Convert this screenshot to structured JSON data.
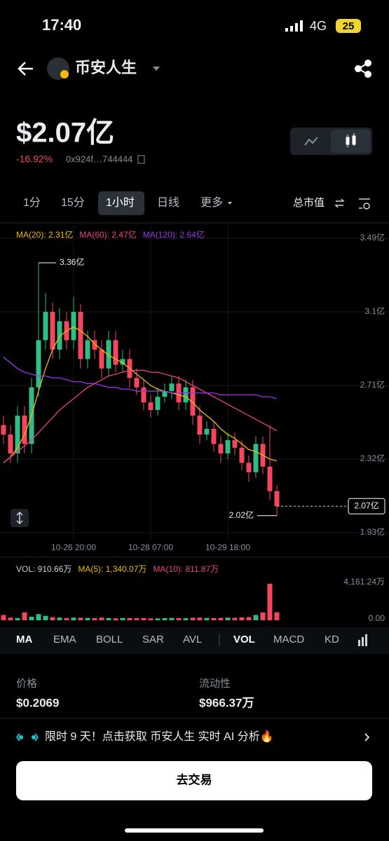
{
  "status": {
    "time": "17:40",
    "network": "4G",
    "battery": "25"
  },
  "header": {
    "title": "币安人生"
  },
  "summary": {
    "market_cap": "$2.07亿",
    "change": "-16.92%",
    "address": "0x924f…744444"
  },
  "tabs": {
    "items": [
      "1分",
      "15分",
      "1小时",
      "日线",
      "更多"
    ],
    "active": 2,
    "metric": "总市值"
  },
  "chart_data": [
    {
      "type": "candlestick",
      "up_color": "#2ebd85",
      "down_color": "#f6465d",
      "open": [
        2.5,
        2.45,
        2.35,
        2.55,
        2.4,
        2.7,
        2.95,
        3.1,
        2.9,
        3.05,
        2.95,
        3.1,
        2.85,
        2.95,
        2.9,
        2.8,
        2.95,
        2.82,
        2.85,
        2.75,
        2.7,
        2.62,
        2.58,
        2.65,
        2.68,
        2.72,
        2.62,
        2.7,
        2.55,
        2.45,
        2.48,
        2.4,
        2.35,
        2.42,
        2.38,
        2.3,
        2.25,
        2.4,
        2.28,
        2.15
      ],
      "high": [
        2.55,
        2.5,
        2.6,
        2.6,
        2.75,
        3.36,
        3.2,
        3.15,
        3.12,
        3.1,
        3.18,
        3.14,
        3.0,
        3.0,
        2.95,
        3.0,
        3.0,
        2.9,
        2.9,
        2.8,
        2.74,
        2.66,
        2.7,
        2.72,
        2.76,
        2.76,
        2.74,
        2.74,
        2.6,
        2.52,
        2.52,
        2.44,
        2.46,
        2.46,
        2.42,
        2.34,
        2.44,
        2.44,
        2.5,
        2.18
      ],
      "low": [
        2.4,
        2.3,
        2.3,
        2.35,
        2.35,
        2.65,
        2.9,
        2.85,
        2.85,
        2.9,
        2.9,
        2.8,
        2.8,
        2.85,
        2.75,
        2.76,
        2.78,
        2.78,
        2.7,
        2.66,
        2.58,
        2.54,
        2.55,
        2.62,
        2.64,
        2.58,
        2.58,
        2.5,
        2.4,
        2.42,
        2.36,
        2.3,
        2.32,
        2.34,
        2.26,
        2.2,
        2.22,
        2.24,
        2.1,
        2.02
      ],
      "close": [
        2.45,
        2.35,
        2.55,
        2.4,
        2.7,
        2.95,
        3.1,
        2.9,
        3.05,
        2.95,
        3.1,
        2.85,
        2.95,
        2.9,
        2.8,
        2.95,
        2.82,
        2.85,
        2.75,
        2.7,
        2.62,
        2.58,
        2.65,
        2.68,
        2.72,
        2.62,
        2.7,
        2.55,
        2.45,
        2.48,
        2.4,
        2.35,
        2.42,
        2.38,
        2.3,
        2.25,
        2.4,
        2.28,
        2.15,
        2.07
      ],
      "series": [
        {
          "name": "MA(20): 2.31亿",
          "color": "#f0b90b",
          "values": [
            2.3,
            2.33,
            2.38,
            2.45,
            2.55,
            2.68,
            2.8,
            2.9,
            2.97,
            3.0,
            3.02,
            3.0,
            2.97,
            2.93,
            2.9,
            2.87,
            2.85,
            2.83,
            2.8,
            2.77,
            2.74,
            2.71,
            2.69,
            2.68,
            2.67,
            2.66,
            2.65,
            2.62,
            2.58,
            2.55,
            2.52,
            2.48,
            2.45,
            2.43,
            2.4,
            2.37,
            2.36,
            2.34,
            2.32,
            2.31
          ]
        },
        {
          "name": "MA(60): 2.47亿",
          "color": "#e8418a",
          "values": [
            2.3,
            2.33,
            2.36,
            2.39,
            2.42,
            2.46,
            2.5,
            2.54,
            2.58,
            2.61,
            2.64,
            2.67,
            2.7,
            2.72,
            2.74,
            2.76,
            2.77,
            2.78,
            2.79,
            2.79,
            2.79,
            2.78,
            2.78,
            2.77,
            2.76,
            2.75,
            2.73,
            2.71,
            2.69,
            2.67,
            2.65,
            2.63,
            2.61,
            2.59,
            2.57,
            2.55,
            2.53,
            2.51,
            2.49,
            2.47
          ]
        },
        {
          "name": "MA(120): 2.64亿",
          "color": "#9b34e6",
          "values": [
            2.86,
            2.83,
            2.8,
            2.78,
            2.77,
            2.76,
            2.76,
            2.75,
            2.75,
            2.74,
            2.73,
            2.73,
            2.72,
            2.72,
            2.71,
            2.7,
            2.7,
            2.69,
            2.69,
            2.68,
            2.68,
            2.68,
            2.68,
            2.68,
            2.67,
            2.67,
            2.67,
            2.67,
            2.67,
            2.67,
            2.67,
            2.66,
            2.66,
            2.66,
            2.66,
            2.66,
            2.66,
            2.65,
            2.65,
            2.64
          ]
        }
      ],
      "ylim": [
        1.93,
        3.49
      ],
      "yticks": [
        {
          "value": 3.49,
          "label": "3.49亿"
        },
        {
          "value": 3.1,
          "label": "3.1亿"
        },
        {
          "value": 2.71,
          "label": "2.71亿"
        },
        {
          "value": 2.32,
          "label": "2.32亿"
        },
        {
          "value": 1.93,
          "label": "1.93亿"
        }
      ],
      "xticks": [
        {
          "value": 10,
          "label": "10-26 20:00"
        },
        {
          "value": 21,
          "label": "10-28 07:00"
        },
        {
          "value": 32,
          "label": "10-29 18:00"
        }
      ],
      "high_mark": {
        "value": 3.36,
        "label": "3.36亿"
      },
      "low_mark": {
        "value": 2.02,
        "label": "2.02亿"
      },
      "last_price": {
        "value": 2.07,
        "label": "2.07亿"
      }
    },
    {
      "type": "bar",
      "legend": [
        {
          "name": "VOL: 910.66万",
          "color": "#cfd3d8"
        },
        {
          "name": "MA(5): 1,340.07万",
          "color": "#f0b90b"
        },
        {
          "name": "MA(10): 811.87万",
          "color": "#e8418a"
        }
      ],
      "values": [
        600,
        300,
        250,
        900,
        400,
        700,
        500,
        350,
        300,
        250,
        300,
        280,
        260,
        240,
        300,
        250,
        220,
        260,
        240,
        230,
        250,
        220,
        210,
        240,
        260,
        250,
        230,
        280,
        300,
        260,
        250,
        270,
        300,
        280,
        320,
        350,
        600,
        900,
        4161.24,
        910.66
      ],
      "ylim": [
        0,
        4161.24
      ],
      "yticks": [
        {
          "value": 4161.24,
          "label": "4,161.24万"
        },
        {
          "value": 0,
          "label": "0.00"
        }
      ]
    }
  ],
  "indicators": {
    "items": [
      "MA",
      "EMA",
      "BOLL",
      "SAR",
      "AVL",
      "VOL",
      "MACD",
      "KD"
    ],
    "active": [
      0,
      5
    ]
  },
  "stats": [
    {
      "label": "价格",
      "value": "$0.2069"
    },
    {
      "label": "流动性",
      "value": "$966.37万"
    }
  ],
  "banner": {
    "text": "限时 9 天！点击获取 币安人生 实时 AI 分析🔥"
  },
  "button": {
    "text": "去交易"
  }
}
